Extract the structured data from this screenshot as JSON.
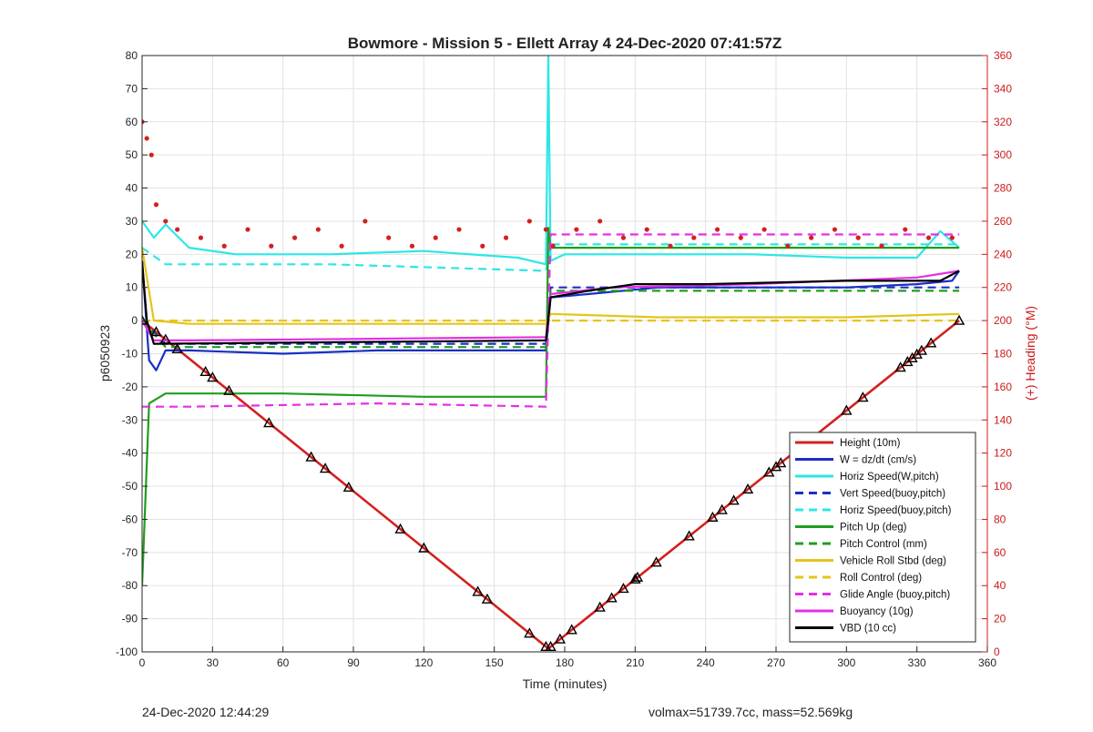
{
  "chart_data": {
    "type": "line",
    "title": "Bowmore - Mission 5 - Ellett Array 4 24-Dec-2020 07:41:57Z",
    "xlabel": "Time (minutes)",
    "ylabel": "p6050923",
    "ylabel_right": "(+) Heading (°M)",
    "xlim": [
      0,
      360
    ],
    "ylim": [
      -100,
      80
    ],
    "ylim_right": [
      0,
      360
    ],
    "x_ticks": [
      0,
      30,
      60,
      90,
      120,
      150,
      180,
      210,
      240,
      270,
      300,
      330,
      360
    ],
    "y_ticks": [
      -100,
      -90,
      -80,
      -70,
      -60,
      -50,
      -40,
      -30,
      -20,
      -10,
      0,
      10,
      20,
      30,
      40,
      50,
      60,
      70,
      80
    ],
    "y_ticks_right": [
      0,
      20,
      40,
      60,
      80,
      100,
      120,
      140,
      160,
      180,
      200,
      220,
      240,
      260,
      280,
      300,
      320,
      340,
      360
    ],
    "grid": true,
    "legend_position": "bottom-right",
    "colors": {
      "red": "#d42020",
      "blue": "#1c2fc4",
      "cyan": "#2ee6e6",
      "green": "#1f9e1f",
      "yellow": "#e6c41a",
      "magenta": "#e62ee6",
      "black": "#000000"
    },
    "series": [
      {
        "name": "Height (10m)",
        "color": "#d42020",
        "style": "solid",
        "axis": "left",
        "x": [
          0,
          173,
          348
        ],
        "y": [
          0,
          -99,
          0
        ]
      },
      {
        "name": "W = dz/dt (cm/s)",
        "color": "#1c2fc4",
        "style": "solid",
        "axis": "left",
        "x": [
          0,
          3,
          6,
          10,
          20,
          60,
          100,
          140,
          172,
          174,
          190,
          220,
          260,
          300,
          330,
          345,
          348
        ],
        "y": [
          18,
          -12,
          -15,
          -9,
          -9,
          -10,
          -9,
          -9,
          -9,
          7,
          8,
          10,
          10,
          10,
          11,
          12,
          15
        ]
      },
      {
        "name": "Horiz Speed(W,pitch)",
        "color": "#2ee6e6",
        "style": "solid",
        "axis": "left",
        "x": [
          0,
          5,
          10,
          20,
          40,
          80,
          120,
          160,
          172,
          173,
          174,
          180,
          220,
          260,
          300,
          330,
          340,
          348
        ],
        "y": [
          30,
          25,
          29,
          22,
          20,
          20,
          21,
          19,
          17,
          80,
          18,
          20,
          20,
          20,
          19,
          19,
          27,
          22
        ]
      },
      {
        "name": "Vert Speed(buoy,pitch)",
        "color": "#1c2fc4",
        "style": "dashed",
        "axis": "left",
        "x": [
          0,
          10,
          172,
          174,
          348
        ],
        "y": [
          0,
          -7,
          -7,
          10,
          10
        ]
      },
      {
        "name": "Horiz Speed(buoy,pitch)",
        "color": "#2ee6e6",
        "style": "dashed",
        "axis": "left",
        "x": [
          0,
          10,
          80,
          172,
          174,
          348
        ],
        "y": [
          22,
          17,
          17,
          15,
          23,
          23
        ]
      },
      {
        "name": "Pitch Up (deg)",
        "color": "#1f9e1f",
        "style": "solid",
        "axis": "left",
        "x": [
          0,
          3,
          10,
          60,
          120,
          172,
          173,
          174,
          220,
          300,
          348
        ],
        "y": [
          -80,
          -25,
          -22,
          -22,
          -23,
          -23,
          28,
          22,
          22,
          22,
          22
        ]
      },
      {
        "name": "Pitch Control (mm)",
        "color": "#1f9e1f",
        "style": "dashed",
        "axis": "left",
        "x": [
          0,
          10,
          172,
          174,
          348
        ],
        "y": [
          0,
          -8,
          -8,
          9,
          9
        ]
      },
      {
        "name": "Vehicle Roll Stbd (deg)",
        "color": "#e6c41a",
        "style": "solid",
        "axis": "left",
        "x": [
          0,
          5,
          20,
          60,
          120,
          172,
          174,
          220,
          260,
          300,
          348
        ],
        "y": [
          22,
          0,
          -1,
          -1,
          -1,
          -1,
          2,
          1,
          1,
          1,
          2
        ]
      },
      {
        "name": "Roll Control (deg)",
        "color": "#e6c41a",
        "style": "dashed",
        "axis": "left",
        "x": [
          0,
          10,
          172,
          174,
          348
        ],
        "y": [
          0,
          0,
          0,
          0,
          0
        ]
      },
      {
        "name": "Glide Angle (buoy,pitch)",
        "color": "#e62ee6",
        "style": "dashed",
        "axis": "left",
        "x": [
          0,
          5,
          20,
          100,
          172,
          174,
          220,
          300,
          348
        ],
        "y": [
          -26,
          -26,
          -26,
          -25,
          -26,
          26,
          26,
          26,
          26
        ]
      },
      {
        "name": "Buoyancy (10g)",
        "color": "#e62ee6",
        "style": "solid",
        "axis": "left",
        "x": [
          0,
          5,
          20,
          172,
          174,
          200,
          260,
          330,
          348
        ],
        "y": [
          0,
          -6,
          -6,
          -5,
          8,
          10,
          11,
          13,
          15
        ]
      },
      {
        "name": "VBD (10 cc)",
        "color": "#000000",
        "style": "solid",
        "axis": "left",
        "x": [
          0,
          2,
          5,
          172,
          174,
          190,
          210,
          240,
          300,
          340,
          348
        ],
        "y": [
          18,
          0,
          -7,
          -6,
          7,
          9,
          11,
          11,
          12,
          12,
          15
        ]
      },
      {
        "color": "#d42020",
        "style": "dotted",
        "axis": "right",
        "x": [
          0,
          2,
          4,
          6,
          10,
          15,
          25,
          35,
          45,
          55,
          65,
          75,
          85,
          95,
          105,
          115,
          125,
          135,
          145,
          155,
          165,
          172,
          175,
          185,
          195,
          205,
          215,
          225,
          235,
          245,
          255,
          265,
          275,
          285,
          295,
          305,
          315,
          325,
          335,
          345
        ],
        "y": [
          320,
          310,
          300,
          270,
          260,
          255,
          250,
          245,
          255,
          245,
          250,
          255,
          245,
          260,
          250,
          245,
          250,
          255,
          245,
          250,
          260,
          255,
          245,
          255,
          260,
          250,
          255,
          245,
          250,
          255,
          250,
          255,
          245,
          250,
          255,
          250,
          245,
          255,
          250,
          250
        ]
      }
    ],
    "legend": [
      "Height (10m)",
      "W = dz/dt (cm/s)",
      "Horiz Speed(W,pitch)",
      "Vert Speed(buoy,pitch)",
      "Horiz Speed(buoy,pitch)",
      "Pitch Up (deg)",
      "Pitch Control (mm)",
      "Vehicle Roll Stbd (deg)",
      "Roll Control (deg)",
      "Glide Angle (buoy,pitch)",
      "Buoyancy (10g)",
      "VBD (10 cc)"
    ],
    "triangle_markers_x": [
      0,
      6,
      10,
      15,
      27,
      30,
      37,
      54,
      72,
      78,
      88,
      110,
      120,
      143,
      147,
      165,
      172,
      174,
      178,
      183,
      195,
      200,
      205,
      210,
      211,
      219,
      233,
      243,
      247,
      252,
      258,
      267,
      270,
      272,
      280,
      300,
      307,
      323,
      326,
      328,
      330,
      332,
      336,
      348
    ]
  },
  "footer": {
    "left": "24-Dec-2020 12:44:29",
    "right": "volmax=51739.7cc, mass=52.569kg"
  }
}
